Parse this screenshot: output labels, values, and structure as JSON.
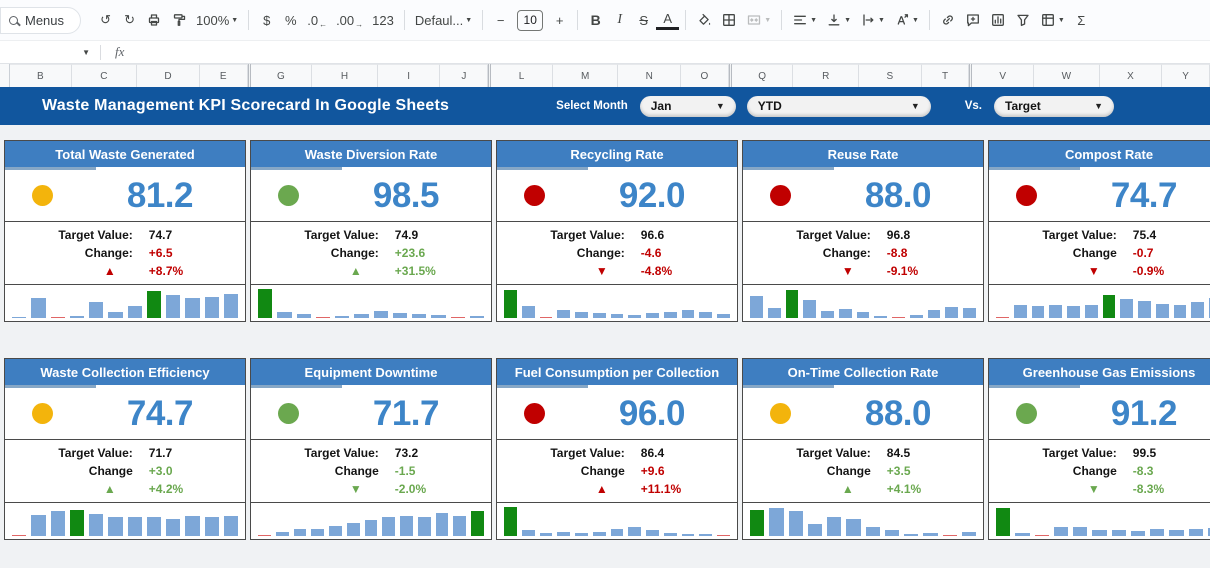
{
  "toolbar": {
    "items": [
      {
        "kind": "menus",
        "name": "menus-button",
        "label": "Menus"
      },
      {
        "kind": "glyph",
        "name": "undo-button",
        "glyph": "↺"
      },
      {
        "kind": "glyph",
        "name": "redo-button",
        "glyph": "↻"
      },
      {
        "kind": "svg",
        "name": "print-button",
        "icon": "print"
      },
      {
        "kind": "svg",
        "name": "paint-format-button",
        "icon": "paint"
      },
      {
        "kind": "drop",
        "name": "zoom-select",
        "label": "100%"
      },
      {
        "kind": "div"
      },
      {
        "kind": "glyph",
        "name": "currency-format-button",
        "glyph": "$"
      },
      {
        "kind": "glyph",
        "name": "percent-format-button",
        "glyph": "%"
      },
      {
        "kind": "glyph",
        "name": "decrease-decimals-button",
        "glyph": ".0",
        "sub": "←"
      },
      {
        "kind": "glyph",
        "name": "increase-decimals-button",
        "glyph": ".00",
        "sub": "→"
      },
      {
        "kind": "glyph",
        "name": "more-formats-button",
        "glyph": "123"
      },
      {
        "kind": "div"
      },
      {
        "kind": "drop",
        "name": "font-family-select",
        "label": "Defaul..."
      },
      {
        "kind": "div"
      },
      {
        "kind": "glyph",
        "name": "decrease-font-size-button",
        "glyph": "−"
      },
      {
        "kind": "box",
        "name": "font-size-input",
        "label": "10"
      },
      {
        "kind": "glyph",
        "name": "increase-font-size-button",
        "glyph": "+"
      },
      {
        "kind": "div"
      },
      {
        "kind": "glyph",
        "name": "bold-button",
        "glyph": "B",
        "cls": "bold"
      },
      {
        "kind": "glyph",
        "name": "italic-button",
        "glyph": "I",
        "cls": "italic"
      },
      {
        "kind": "glyph",
        "name": "strikethrough-button",
        "glyph": "S",
        "cls": "strike"
      },
      {
        "kind": "glyph",
        "name": "text-color-button",
        "glyph": "A",
        "cls": "underA"
      },
      {
        "kind": "div"
      },
      {
        "kind": "svg",
        "name": "fill-color-button",
        "icon": "fill"
      },
      {
        "kind": "svg",
        "name": "borders-button",
        "icon": "borders"
      },
      {
        "kind": "svg",
        "name": "merge-cells-button",
        "icon": "merge",
        "caret": true,
        "disabled": true
      },
      {
        "kind": "div"
      },
      {
        "kind": "svg",
        "name": "horizontal-align-button",
        "icon": "align",
        "caret": true
      },
      {
        "kind": "svg",
        "name": "vertical-align-button",
        "icon": "valign",
        "caret": true
      },
      {
        "kind": "svg",
        "name": "text-wrap-button",
        "icon": "wrap",
        "caret": true
      },
      {
        "kind": "svg",
        "name": "text-rotation-button",
        "icon": "rotate",
        "caret": true
      },
      {
        "kind": "div"
      },
      {
        "kind": "svg",
        "name": "insert-link-button",
        "icon": "link"
      },
      {
        "kind": "svg",
        "name": "insert-comment-button",
        "icon": "comment"
      },
      {
        "kind": "svg",
        "name": "insert-chart-button",
        "icon": "chart"
      },
      {
        "kind": "svg",
        "name": "create-filter-button",
        "icon": "filter"
      },
      {
        "kind": "svg",
        "name": "table-views-button",
        "icon": "pivot",
        "caret": true
      },
      {
        "kind": "glyph",
        "name": "functions-button",
        "glyph": "Σ"
      }
    ]
  },
  "formula_bar": {
    "fx_label": "fx"
  },
  "column_headers": {
    "groups": [
      [
        "B",
        "C",
        "D",
        "E"
      ],
      [
        "G",
        "H",
        "I",
        "J"
      ],
      [
        "L",
        "M",
        "N",
        "O"
      ],
      [
        "Q",
        "R",
        "S",
        "T"
      ],
      [
        "V",
        "W",
        "X",
        "Y"
      ]
    ]
  },
  "header": {
    "title": "Waste Management KPI Scorecard In Google Sheets",
    "select_month_label": "Select Month",
    "month_value": "Jan",
    "period_value": "YTD",
    "vs_label": "Vs.",
    "compare_value": "Target"
  },
  "colors": {
    "band_blue": "#11569E",
    "card_header_blue": "#3E7EC1",
    "value_blue": "#3D85C8",
    "status": {
      "yellow": "#F3B40C",
      "green": "#6BA84F",
      "red": "#C00000"
    },
    "change": {
      "red": "#C00000",
      "green": "#6AA84F"
    },
    "spark": {
      "b": "#7DA7D8",
      "g": "#118912",
      "r": "#E06666"
    }
  },
  "cards": [
    {
      "title": "Total Waste Generated",
      "value": "81.2",
      "status": "yellow",
      "target_label": "Target Value:",
      "target": "74.7",
      "change_label": "Change:",
      "change": "+6.5",
      "change_color": "red",
      "trend": "up",
      "trend_color": "red",
      "pct": "+8.7%",
      "spark": [
        [
          5,
          "b"
        ],
        [
          70,
          "b"
        ],
        [
          4,
          "r"
        ],
        [
          6,
          "b"
        ],
        [
          55,
          "b"
        ],
        [
          22,
          "b"
        ],
        [
          42,
          "b"
        ],
        [
          92,
          "g"
        ],
        [
          78,
          "b"
        ],
        [
          68,
          "b"
        ],
        [
          73,
          "b"
        ],
        [
          82,
          "b"
        ]
      ]
    },
    {
      "title": "Waste Diversion Rate",
      "value": "98.5",
      "status": "green",
      "target_label": "Target Value:",
      "target": "74.9",
      "change_label": "Change:",
      "change": "+23.6",
      "change_color": "green",
      "trend": "up",
      "trend_color": "green",
      "pct": "+31.5%",
      "spark": [
        [
          100,
          "g"
        ],
        [
          20,
          "b"
        ],
        [
          15,
          "b"
        ],
        [
          4,
          "r"
        ],
        [
          8,
          "b"
        ],
        [
          13,
          "b"
        ],
        [
          25,
          "b"
        ],
        [
          16,
          "b"
        ],
        [
          15,
          "b"
        ],
        [
          9,
          "b"
        ],
        [
          4,
          "r"
        ],
        [
          7,
          "b"
        ]
      ]
    },
    {
      "title": "Recycling Rate",
      "value": "92.0",
      "status": "red",
      "target_label": "Target Value:",
      "target": "96.6",
      "change_label": "Change:",
      "change": "-4.6",
      "change_color": "red",
      "trend": "down",
      "trend_color": "red",
      "pct": "-4.8%",
      "spark": [
        [
          95,
          "g"
        ],
        [
          40,
          "b"
        ],
        [
          4,
          "r"
        ],
        [
          28,
          "b"
        ],
        [
          22,
          "b"
        ],
        [
          17,
          "b"
        ],
        [
          14,
          "b"
        ],
        [
          12,
          "b"
        ],
        [
          17,
          "b"
        ],
        [
          20,
          "b"
        ],
        [
          27,
          "b"
        ],
        [
          22,
          "b"
        ],
        [
          15,
          "b"
        ]
      ]
    },
    {
      "title": "Reuse Rate",
      "value": "88.0",
      "status": "red",
      "target_label": "Target Value:",
      "target": "96.8",
      "change_label": "Change:",
      "change": "-8.8",
      "change_color": "red",
      "trend": "down",
      "trend_color": "red",
      "pct": "-9.1%",
      "spark": [
        [
          75,
          "b"
        ],
        [
          35,
          "b"
        ],
        [
          95,
          "g"
        ],
        [
          62,
          "b"
        ],
        [
          25,
          "b"
        ],
        [
          30,
          "b"
        ],
        [
          20,
          "b"
        ],
        [
          6,
          "b"
        ],
        [
          4,
          "r"
        ],
        [
          9,
          "b"
        ],
        [
          28,
          "b"
        ],
        [
          38,
          "b"
        ],
        [
          33,
          "b"
        ]
      ]
    },
    {
      "title": "Compost Rate",
      "value": "74.7",
      "status": "red",
      "target_label": "Target Value:",
      "target": "75.4",
      "change_label": "Change",
      "change": "-0.7",
      "change_color": "red",
      "trend": "down",
      "trend_color": "red",
      "pct": "-0.9%",
      "spark": [
        [
          4,
          "r"
        ],
        [
          45,
          "b"
        ],
        [
          40,
          "b"
        ],
        [
          44,
          "b"
        ],
        [
          40,
          "b"
        ],
        [
          45,
          "b"
        ],
        [
          80,
          "g"
        ],
        [
          64,
          "b"
        ],
        [
          58,
          "b"
        ],
        [
          50,
          "b"
        ],
        [
          46,
          "b"
        ],
        [
          55,
          "b"
        ],
        [
          70,
          "b"
        ]
      ]
    },
    {
      "title": "Waste Collection Efficiency",
      "value": "74.7",
      "status": "yellow",
      "target_label": "Target Value:",
      "target": "71.7",
      "change_label": "Change",
      "change": "+3.0",
      "change_color": "green",
      "trend": "up",
      "trend_color": "green",
      "pct": "+4.2%",
      "spark": [
        [
          4,
          "r"
        ],
        [
          74,
          "b"
        ],
        [
          85,
          "b"
        ],
        [
          90,
          "g"
        ],
        [
          75,
          "b"
        ],
        [
          64,
          "b"
        ],
        [
          64,
          "b"
        ],
        [
          64,
          "b"
        ],
        [
          58,
          "b"
        ],
        [
          70,
          "b"
        ],
        [
          64,
          "b"
        ],
        [
          70,
          "b"
        ]
      ]
    },
    {
      "title": "Equipment Downtime",
      "value": "71.7",
      "status": "green",
      "target_label": "Target Value:",
      "target": "73.2",
      "change_label": "Change",
      "change": "-1.5",
      "change_color": "green",
      "trend": "down",
      "trend_color": "green",
      "pct": "-2.0%",
      "spark": [
        [
          4,
          "r"
        ],
        [
          14,
          "b"
        ],
        [
          24,
          "b"
        ],
        [
          24,
          "b"
        ],
        [
          34,
          "b"
        ],
        [
          44,
          "b"
        ],
        [
          54,
          "b"
        ],
        [
          64,
          "b"
        ],
        [
          70,
          "b"
        ],
        [
          64,
          "b"
        ],
        [
          80,
          "b"
        ],
        [
          70,
          "b"
        ],
        [
          86,
          "g"
        ]
      ]
    },
    {
      "title": "Fuel Consumption per Collection",
      "value": "96.0",
      "status": "red",
      "target_label": "Target Value:",
      "target": "86.4",
      "change_label": "Change",
      "change": "+9.6",
      "change_color": "red",
      "trend": "up",
      "trend_color": "red",
      "pct": "+11.1%",
      "spark": [
        [
          100,
          "g"
        ],
        [
          20,
          "b"
        ],
        [
          10,
          "b"
        ],
        [
          15,
          "b"
        ],
        [
          12,
          "b"
        ],
        [
          15,
          "b"
        ],
        [
          25,
          "b"
        ],
        [
          30,
          "b"
        ],
        [
          20,
          "b"
        ],
        [
          10,
          "b"
        ],
        [
          8,
          "b"
        ],
        [
          8,
          "b"
        ],
        [
          4,
          "r"
        ]
      ]
    },
    {
      "title": "On-Time Collection Rate",
      "value": "88.0",
      "status": "yellow",
      "target_label": "Target Value:",
      "target": "84.5",
      "change_label": "Change",
      "change": "+3.5",
      "change_color": "green",
      "trend": "up",
      "trend_color": "green",
      "pct": "+4.1%",
      "spark": [
        [
          90,
          "g"
        ],
        [
          96,
          "b"
        ],
        [
          85,
          "b"
        ],
        [
          40,
          "b"
        ],
        [
          65,
          "b"
        ],
        [
          60,
          "b"
        ],
        [
          30,
          "b"
        ],
        [
          20,
          "b"
        ],
        [
          8,
          "b"
        ],
        [
          12,
          "b"
        ],
        [
          4,
          "r"
        ],
        [
          15,
          "b"
        ]
      ]
    },
    {
      "title": "Greenhouse Gas Emissions",
      "value": "91.2",
      "status": "green",
      "target_label": "Target Value:",
      "target": "99.5",
      "change_label": "Change",
      "change": "-8.3",
      "change_color": "green",
      "trend": "down",
      "trend_color": "green",
      "pct": "-8.3%",
      "spark": [
        [
          95,
          "g"
        ],
        [
          10,
          "b"
        ],
        [
          4,
          "r"
        ],
        [
          30,
          "b"
        ],
        [
          30,
          "b"
        ],
        [
          22,
          "b"
        ],
        [
          20,
          "b"
        ],
        [
          18,
          "b"
        ],
        [
          25,
          "b"
        ],
        [
          20,
          "b"
        ],
        [
          25,
          "b"
        ],
        [
          28,
          "b"
        ]
      ]
    }
  ]
}
